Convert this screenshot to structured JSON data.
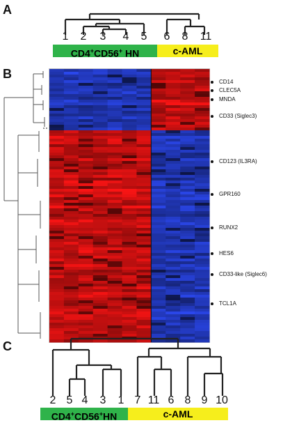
{
  "panels": {
    "a": {
      "label": "A",
      "leaves": [
        "1",
        "2",
        "3",
        "4",
        "5",
        "6",
        "8",
        "11"
      ],
      "group_hn": "CD4+CD56+ HN",
      "group_aml": "c-AML"
    },
    "b": {
      "label": "B",
      "genes": [
        "CD14",
        "CLEC5A",
        "MNDA",
        "CD33 (Siglec3)",
        "CD123 (IL3RA)",
        "GPR160",
        "RUNX2",
        "HES6",
        "CD33-like (Siglec6)",
        "TCL1A"
      ]
    },
    "c": {
      "label": "C",
      "leaves": [
        "2",
        "5",
        "4",
        "3",
        "1",
        "7",
        "11",
        "6",
        "8",
        "9",
        "10"
      ],
      "group_hn": "CD4+CD56+HN",
      "group_aml": "c-AML"
    }
  },
  "colors": {
    "hn_bar": "#2fb34a",
    "aml_bar": "#f6ee1c",
    "heat_up": "#e01818",
    "heat_down": "#1f3fd0"
  }
}
